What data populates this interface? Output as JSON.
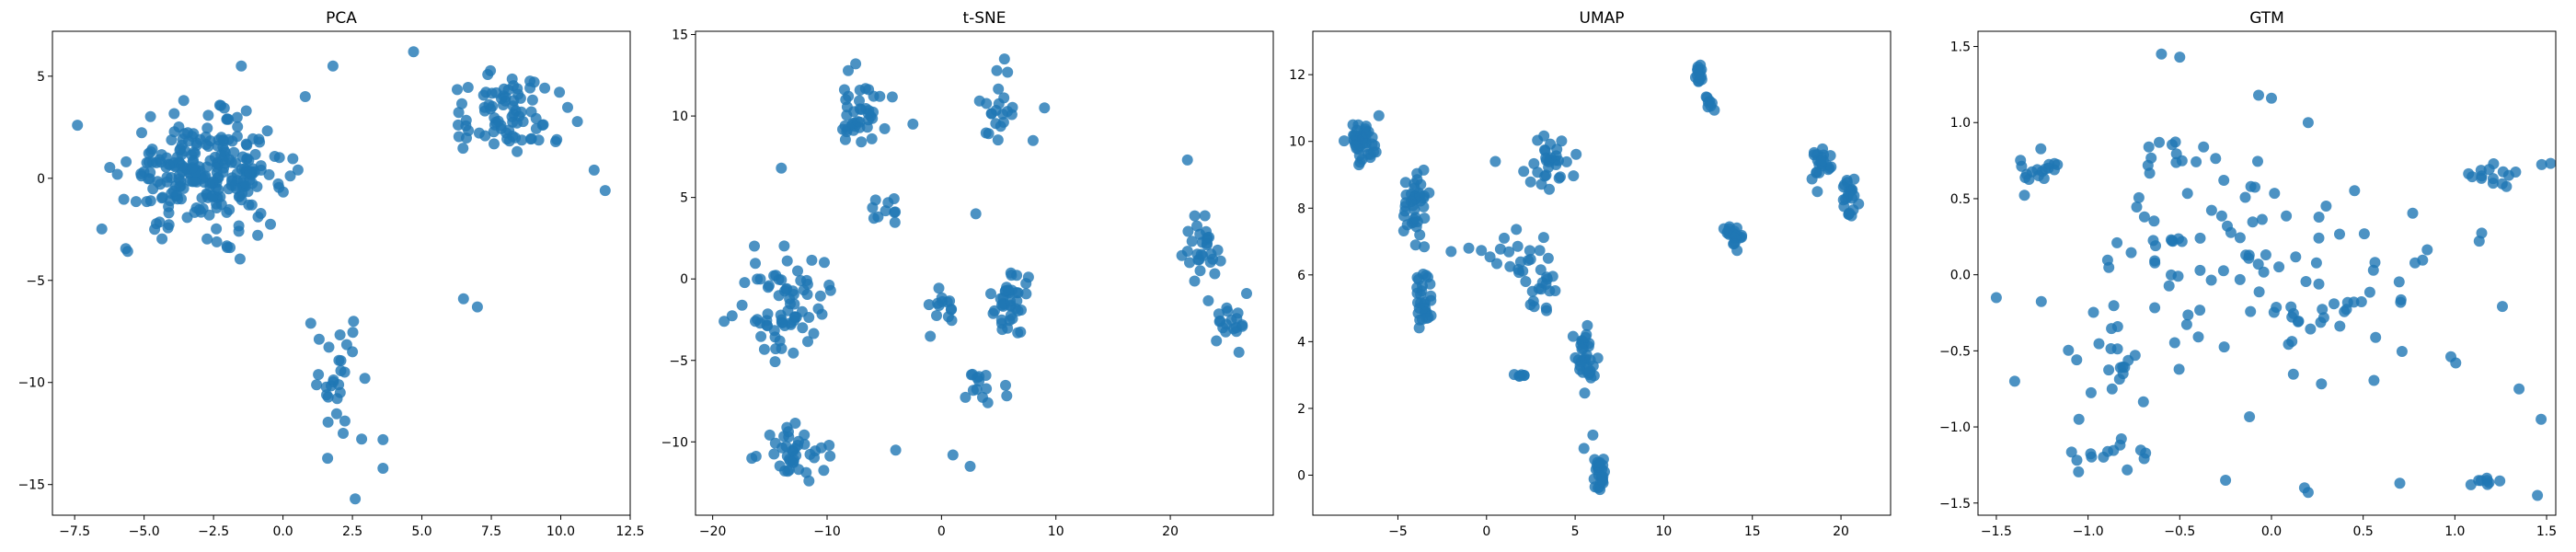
{
  "figure": {
    "background": "#ffffff",
    "point_color": "#1f77b4",
    "point_alpha": 0.8
  },
  "chart_data": [
    {
      "type": "scatter",
      "title": "PCA",
      "xlabel": "",
      "ylabel": "",
      "xlim": [
        -8.3,
        12.5
      ],
      "ylim": [
        -16.5,
        7.2
      ],
      "xticks": [
        -7.5,
        -5.0,
        -2.5,
        0.0,
        2.5,
        5.0,
        7.5,
        10.0,
        12.5
      ],
      "xtick_labels": [
        "−7.5",
        "−5.0",
        "−2.5",
        "0.0",
        "2.5",
        "5.0",
        "7.5",
        "10.0",
        "12.5"
      ],
      "yticks": [
        -15,
        -10,
        -5,
        0,
        5
      ],
      "ytick_labels": [
        "−15",
        "−10",
        "−5",
        "0",
        "5"
      ],
      "grid": false,
      "clusters": [
        {
          "cx": -2.8,
          "cy": 0.2,
          "sx": 2.6,
          "sy": 2.4,
          "n": 260
        },
        {
          "cx": 8.2,
          "cy": 3.2,
          "sx": 2.0,
          "sy": 1.7,
          "n": 80
        },
        {
          "cx": 2.0,
          "cy": -10.0,
          "sx": 0.8,
          "sy": 2.6,
          "n": 28
        }
      ],
      "points": [
        [
          -7.4,
          2.6
        ],
        [
          6.5,
          -5.9
        ],
        [
          7.0,
          -6.3
        ],
        [
          2.6,
          -15.7
        ],
        [
          3.6,
          -14.2
        ],
        [
          3.6,
          -12.8
        ],
        [
          1.8,
          5.5
        ],
        [
          4.7,
          6.2
        ],
        [
          -1.5,
          5.5
        ],
        [
          11.6,
          -0.6
        ],
        [
          11.2,
          0.4
        ],
        [
          0.8,
          4.0
        ],
        [
          2.5,
          -8.5
        ],
        [
          1.0,
          -7.1
        ]
      ]
    },
    {
      "type": "scatter",
      "title": "t-SNE",
      "xlabel": "",
      "ylabel": "",
      "xlim": [
        -21.5,
        29.0
      ],
      "ylim": [
        -14.5,
        15.2
      ],
      "xticks": [
        -20,
        -10,
        0,
        10,
        20
      ],
      "xtick_labels": [
        "−20",
        "−10",
        "0",
        "10",
        "20"
      ],
      "yticks": [
        -10,
        -5,
        0,
        5,
        10,
        15
      ],
      "ytick_labels": [
        "−10",
        "−5",
        "0",
        "5",
        "10",
        "15"
      ],
      "grid": false,
      "clusters": [
        {
          "cx": -13.5,
          "cy": -1.5,
          "sx": 3.0,
          "sy": 2.8,
          "n": 70
        },
        {
          "cx": -13.0,
          "cy": -10.5,
          "sx": 2.5,
          "sy": 1.5,
          "n": 40
        },
        {
          "cx": -7.0,
          "cy": 10.0,
          "sx": 2.0,
          "sy": 1.6,
          "n": 40
        },
        {
          "cx": 6.0,
          "cy": -1.5,
          "sx": 1.5,
          "sy": 2.0,
          "n": 40
        },
        {
          "cx": 5.0,
          "cy": 10.5,
          "sx": 1.2,
          "sy": 2.0,
          "n": 20
        },
        {
          "cx": 22.5,
          "cy": 2.0,
          "sx": 1.8,
          "sy": 2.0,
          "n": 30
        },
        {
          "cx": 25.0,
          "cy": -2.5,
          "sx": 1.5,
          "sy": 1.2,
          "n": 18
        },
        {
          "cx": 0.0,
          "cy": -1.5,
          "sx": 1.2,
          "sy": 1.5,
          "n": 14
        },
        {
          "cx": 3.5,
          "cy": -6.5,
          "sx": 2.0,
          "sy": 1.2,
          "n": 14
        },
        {
          "cx": -5.0,
          "cy": 4.5,
          "sx": 1.2,
          "sy": 1.3,
          "n": 10
        }
      ],
      "points": [
        [
          -19.0,
          -2.6
        ],
        [
          -4.0,
          -10.5
        ],
        [
          1.0,
          -10.8
        ],
        [
          2.5,
          -11.5
        ],
        [
          5.5,
          13.5
        ],
        [
          8.0,
          8.5
        ],
        [
          21.5,
          7.3
        ],
        [
          -7.5,
          13.2
        ],
        [
          9.0,
          10.5
        ],
        [
          -14.0,
          6.8
        ],
        [
          3.0,
          4.0
        ],
        [
          26.0,
          -4.5
        ],
        [
          -2.5,
          9.5
        ]
      ]
    },
    {
      "type": "scatter",
      "title": "UMAP",
      "xlabel": "",
      "ylabel": "",
      "xlim": [
        -9.8,
        22.8
      ],
      "ylim": [
        -1.2,
        13.3
      ],
      "xticks": [
        -5,
        0,
        5,
        10,
        15,
        20
      ],
      "xtick_labels": [
        "−5",
        "0",
        "5",
        "10",
        "15",
        "20"
      ],
      "yticks": [
        0,
        2,
        4,
        6,
        8,
        10,
        12
      ],
      "ytick_labels": [
        "0",
        "2",
        "4",
        "6",
        "8",
        "10",
        "12"
      ],
      "grid": false,
      "clusters": [
        {
          "cx": -7.0,
          "cy": 10.0,
          "sx": 0.7,
          "sy": 0.6,
          "n": 45
        },
        {
          "cx": -4.0,
          "cy": 8.2,
          "sx": 0.8,
          "sy": 0.9,
          "n": 40
        },
        {
          "cx": -3.5,
          "cy": 5.2,
          "sx": 0.6,
          "sy": 1.0,
          "n": 30
        },
        {
          "cx": 1.5,
          "cy": 6.5,
          "sx": 1.5,
          "sy": 0.7,
          "n": 15
        },
        {
          "cx": 3.5,
          "cy": 9.4,
          "sx": 1.2,
          "sy": 0.8,
          "n": 30
        },
        {
          "cx": 3.0,
          "cy": 5.8,
          "sx": 1.0,
          "sy": 0.9,
          "n": 20
        },
        {
          "cx": 5.5,
          "cy": 3.5,
          "sx": 0.5,
          "sy": 0.8,
          "n": 35
        },
        {
          "cx": 6.5,
          "cy": 0.0,
          "sx": 0.4,
          "sy": 0.5,
          "n": 25
        },
        {
          "cx": 12.0,
          "cy": 12.0,
          "sx": 0.25,
          "sy": 0.3,
          "n": 14
        },
        {
          "cx": 12.5,
          "cy": 11.2,
          "sx": 0.2,
          "sy": 0.2,
          "n": 8
        },
        {
          "cx": 14.0,
          "cy": 7.2,
          "sx": 0.4,
          "sy": 0.4,
          "n": 22
        },
        {
          "cx": 19.0,
          "cy": 9.3,
          "sx": 0.6,
          "sy": 0.5,
          "n": 22
        },
        {
          "cx": 20.5,
          "cy": 8.2,
          "sx": 0.5,
          "sy": 0.7,
          "n": 22
        },
        {
          "cx": 2.0,
          "cy": 3.0,
          "sx": 0.3,
          "sy": 0.1,
          "n": 6
        }
      ],
      "points": [
        [
          -1.0,
          6.8
        ],
        [
          0.5,
          9.4
        ],
        [
          1.0,
          7.1
        ],
        [
          6.0,
          1.2
        ],
        [
          5.5,
          0.8
        ],
        [
          -2.0,
          6.7
        ]
      ]
    },
    {
      "type": "scatter",
      "title": "GTM",
      "xlabel": "",
      "ylabel": "",
      "xlim": [
        -1.6,
        1.55
      ],
      "ylim": [
        -1.58,
        1.6
      ],
      "xticks": [
        -1.5,
        -1.0,
        -0.5,
        0.0,
        0.5,
        1.0,
        1.5
      ],
      "xtick_labels": [
        "−1.5",
        "−1.0",
        "−0.5",
        "0.0",
        "0.5",
        "1.0",
        "1.5"
      ],
      "yticks": [
        -1.5,
        -1.0,
        -0.5,
        0.0,
        0.5,
        1.0,
        1.5
      ],
      "ytick_labels": [
        "−1.5",
        "−1.0",
        "−0.5",
        "0.0",
        "0.5",
        "1.0",
        "1.5"
      ],
      "grid": false,
      "clusters": [
        {
          "cx": 0.0,
          "cy": 0.0,
          "sx": 0.85,
          "sy": 0.7,
          "n": 110
        },
        {
          "cx": -1.3,
          "cy": 0.7,
          "sx": 0.15,
          "sy": 0.12,
          "n": 18
        },
        {
          "cx": 1.2,
          "cy": 0.65,
          "sx": 0.2,
          "sy": 0.08,
          "n": 16
        },
        {
          "cx": -0.5,
          "cy": 0.8,
          "sx": 0.2,
          "sy": 0.15,
          "n": 12
        },
        {
          "cx": -0.9,
          "cy": -1.2,
          "sx": 0.2,
          "sy": 0.1,
          "n": 14
        },
        {
          "cx": 1.2,
          "cy": -1.35,
          "sx": 0.1,
          "sy": 0.06,
          "n": 8
        },
        {
          "cx": -0.8,
          "cy": -0.6,
          "sx": 0.3,
          "sy": 0.25,
          "n": 20
        }
      ],
      "points": [
        [
          -0.6,
          1.45
        ],
        [
          -0.5,
          1.43
        ],
        [
          -0.07,
          1.18
        ],
        [
          0.0,
          1.16
        ],
        [
          0.2,
          1.0
        ],
        [
          0.18,
          -1.4
        ],
        [
          0.2,
          -1.43
        ],
        [
          -0.25,
          -1.35
        ],
        [
          1.45,
          -1.45
        ],
        [
          1.47,
          -0.95
        ],
        [
          -1.5,
          -0.15
        ],
        [
          -1.4,
          -0.7
        ],
        [
          -1.05,
          -0.95
        ],
        [
          0.7,
          -1.37
        ],
        [
          1.35,
          -0.75
        ]
      ]
    }
  ]
}
